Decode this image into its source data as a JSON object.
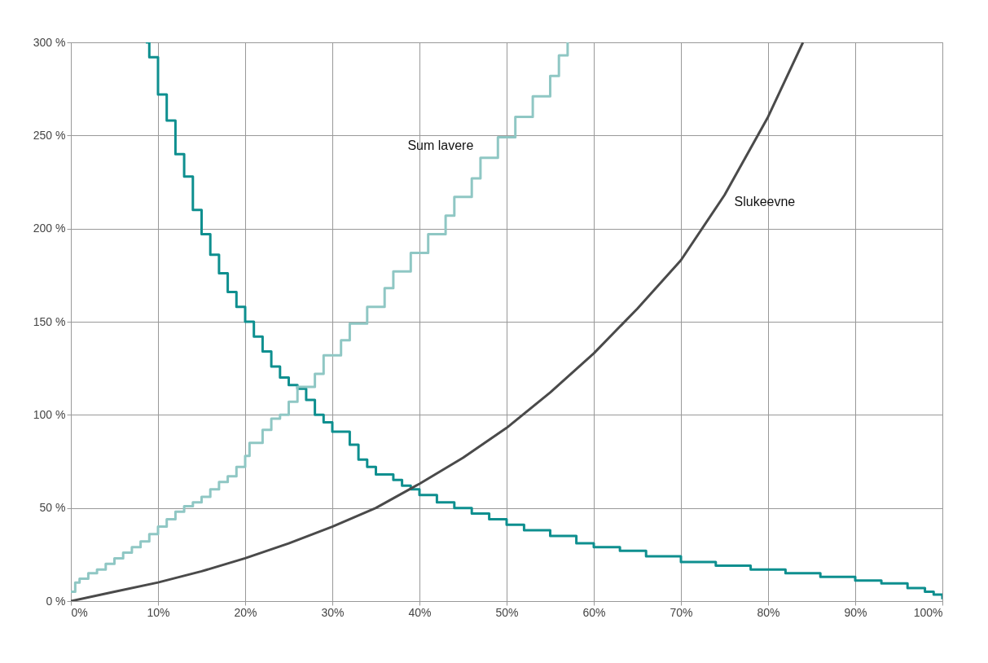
{
  "chart_data": {
    "type": "line",
    "xlim": [
      0,
      100
    ],
    "ylim": [
      0,
      300
    ],
    "xticks": [
      {
        "value": 0,
        "label": "0%"
      },
      {
        "value": 10,
        "label": "10%"
      },
      {
        "value": 20,
        "label": "20%"
      },
      {
        "value": 30,
        "label": "30%"
      },
      {
        "value": 40,
        "label": "40%"
      },
      {
        "value": 50,
        "label": "50%"
      },
      {
        "value": 60,
        "label": "60%"
      },
      {
        "value": 70,
        "label": "70%"
      },
      {
        "value": 80,
        "label": "80%"
      },
      {
        "value": 90,
        "label": "90%"
      },
      {
        "value": 100,
        "label": "100%"
      }
    ],
    "yticks": [
      {
        "value": 0,
        "label": "0 %"
      },
      {
        "value": 50,
        "label": "50 %"
      },
      {
        "value": 100,
        "label": "100 %"
      },
      {
        "value": 150,
        "label": "150 %"
      },
      {
        "value": 200,
        "label": "200 %"
      },
      {
        "value": 250,
        "label": "250 %"
      },
      {
        "value": 300,
        "label": "300 %"
      }
    ],
    "grid": true,
    "series": [
      {
        "type": "step",
        "color": "#0e8f8f",
        "x": [
          8.6,
          9,
          10,
          11,
          12,
          13,
          14,
          15,
          16,
          17,
          18,
          19,
          20,
          21,
          22,
          23,
          24,
          25,
          26,
          27,
          28,
          29,
          30,
          32,
          33,
          34,
          35,
          37,
          38,
          39,
          40,
          42,
          44,
          46,
          48,
          50,
          52,
          55,
          58,
          60,
          63,
          66,
          70,
          74,
          78,
          82,
          86,
          90,
          93,
          96,
          98,
          99,
          100
        ],
        "values": [
          300,
          292,
          272,
          258,
          240,
          228,
          210,
          197,
          186,
          176,
          166,
          158,
          150,
          142,
          134,
          126,
          120,
          116,
          114,
          108,
          100,
          96,
          91,
          84,
          76,
          72,
          68,
          65,
          62,
          60,
          57,
          53,
          50,
          47,
          44,
          41,
          38,
          35,
          31,
          29,
          27,
          24,
          21,
          19,
          17,
          15,
          13,
          11,
          9.5,
          7,
          5,
          3.5,
          1
        ]
      },
      {
        "type": "step",
        "name": "Sum lavere",
        "color": "#8fc7c4",
        "x": [
          0,
          0.5,
          1,
          2,
          3,
          4,
          5,
          6,
          7,
          8,
          9,
          10,
          11,
          12,
          13,
          14,
          15,
          16,
          17,
          18,
          19,
          20,
          20.5,
          22,
          23,
          24,
          25,
          26,
          28,
          29,
          31,
          32,
          34,
          36,
          37,
          39,
          41,
          43,
          44,
          46,
          47,
          49,
          51,
          53,
          55,
          56,
          57
        ],
        "values": [
          5,
          10,
          12,
          15,
          17,
          20,
          23,
          26,
          29,
          32,
          36,
          40,
          44,
          48,
          51,
          53,
          56,
          60,
          64,
          67,
          72,
          78,
          85,
          92,
          98,
          100,
          107,
          115,
          122,
          132,
          140,
          149,
          158,
          168,
          177,
          187,
          197,
          207,
          217,
          227,
          238,
          249,
          260,
          271,
          282,
          293,
          300
        ]
      },
      {
        "type": "line",
        "name": "Slukeevne",
        "color": "#4a4a4a",
        "x": [
          0,
          5,
          10,
          15,
          20,
          25,
          30,
          35,
          40,
          45,
          50,
          55,
          60,
          65,
          70,
          75,
          80,
          84
        ],
        "values": [
          0,
          5,
          10,
          16,
          23,
          31,
          40,
          50,
          63,
          77,
          93,
          112,
          133,
          157,
          183,
          218,
          260,
          300
        ]
      }
    ]
  }
}
